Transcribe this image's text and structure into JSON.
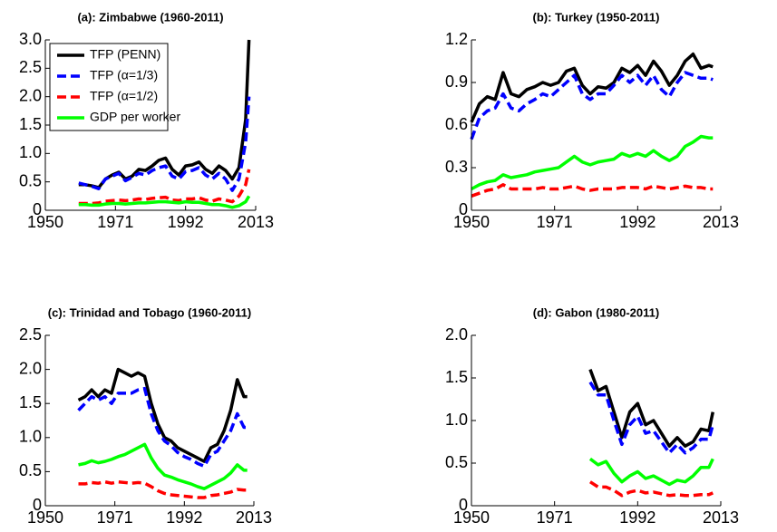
{
  "chart_data": [
    {
      "type": "line",
      "title": "(a): Zimbabwe (1960-2011)",
      "legend": "upper left",
      "x": [
        1960,
        1962,
        1964,
        1966,
        1968,
        1970,
        1972,
        1974,
        1976,
        1978,
        1980,
        1982,
        1984,
        1986,
        1988,
        1990,
        1992,
        1994,
        1996,
        1998,
        2000,
        2002,
        2004,
        2006,
        2008,
        2010,
        2011
      ],
      "series": [
        {
          "name": "TFP (PENN)",
          "color": "#000000",
          "linestyle": "solid",
          "values": [
            0.45,
            0.45,
            0.43,
            0.4,
            0.55,
            0.62,
            0.67,
            0.55,
            0.6,
            0.72,
            0.7,
            0.78,
            0.88,
            0.92,
            0.72,
            0.62,
            0.78,
            0.8,
            0.85,
            0.72,
            0.65,
            0.78,
            0.7,
            0.55,
            0.75,
            1.6,
            3.0
          ]
        },
        {
          "name": "TFP (α=1/3)",
          "color": "#0000ff",
          "linestyle": "dashed",
          "values": [
            0.48,
            0.45,
            0.42,
            0.38,
            0.55,
            0.6,
            0.65,
            0.52,
            0.58,
            0.65,
            0.62,
            0.7,
            0.75,
            0.78,
            0.6,
            0.55,
            0.68,
            0.7,
            0.75,
            0.62,
            0.55,
            0.65,
            0.55,
            0.35,
            0.55,
            1.2,
            2.0
          ]
        },
        {
          "name": "TFP (α=1/2)",
          "color": "#ff0000",
          "linestyle": "dashed",
          "values": [
            0.12,
            0.12,
            0.12,
            0.13,
            0.16,
            0.17,
            0.18,
            0.17,
            0.18,
            0.2,
            0.19,
            0.21,
            0.22,
            0.23,
            0.18,
            0.17,
            0.2,
            0.2,
            0.22,
            0.18,
            0.16,
            0.2,
            0.18,
            0.15,
            0.25,
            0.45,
            0.72
          ]
        },
        {
          "name": "GDP per worker",
          "color": "#00ff00",
          "linestyle": "solid",
          "values": [
            0.1,
            0.1,
            0.09,
            0.09,
            0.11,
            0.12,
            0.12,
            0.11,
            0.12,
            0.13,
            0.13,
            0.14,
            0.15,
            0.15,
            0.14,
            0.13,
            0.15,
            0.14,
            0.14,
            0.12,
            0.1,
            0.1,
            0.08,
            0.05,
            0.08,
            0.15,
            0.25
          ]
        }
      ],
      "xlim": [
        1950,
        2013
      ],
      "xticks": [
        1950,
        1971,
        1992,
        2013
      ],
      "ylim": [
        0,
        3
      ],
      "yticks": [
        0,
        0.5,
        {
          "value": 1,
          "label": "1.0"
        },
        1.5,
        {
          "value": 2,
          "label": "2.0"
        },
        2.5,
        {
          "value": 3,
          "label": "3.0"
        }
      ]
    },
    {
      "type": "line",
      "title": "(b): Turkey (1950-2011)",
      "x": [
        1950,
        1952,
        1954,
        1956,
        1958,
        1960,
        1962,
        1964,
        1966,
        1968,
        1970,
        1972,
        1974,
        1976,
        1978,
        1980,
        1982,
        1984,
        1986,
        1988,
        1990,
        1992,
        1994,
        1996,
        1998,
        2000,
        2002,
        2004,
        2006,
        2008,
        2010,
        2011
      ],
      "series": [
        {
          "name": "TFP (PENN)",
          "color": "#000000",
          "linestyle": "solid",
          "values": [
            0.62,
            0.75,
            0.8,
            0.78,
            0.97,
            0.82,
            0.8,
            0.85,
            0.87,
            0.9,
            0.88,
            0.9,
            0.98,
            1.0,
            0.88,
            0.82,
            0.87,
            0.86,
            0.9,
            1.0,
            0.97,
            1.02,
            0.95,
            1.05,
            0.98,
            0.88,
            0.95,
            1.05,
            1.1,
            1.0,
            1.02,
            1.01
          ]
        },
        {
          "name": "TFP (α=1/3)",
          "color": "#0000ff",
          "linestyle": "dashed",
          "values": [
            0.5,
            0.65,
            0.7,
            0.72,
            0.82,
            0.72,
            0.7,
            0.75,
            0.78,
            0.82,
            0.8,
            0.85,
            0.9,
            0.95,
            0.82,
            0.78,
            0.82,
            0.82,
            0.88,
            0.95,
            0.9,
            0.95,
            0.88,
            0.95,
            0.85,
            0.8,
            0.9,
            0.97,
            0.95,
            0.93,
            0.93,
            0.92
          ]
        },
        {
          "name": "TFP (α=1/2)",
          "color": "#ff0000",
          "linestyle": "dashed",
          "values": [
            0.1,
            0.12,
            0.14,
            0.15,
            0.18,
            0.15,
            0.15,
            0.15,
            0.15,
            0.16,
            0.15,
            0.15,
            0.16,
            0.17,
            0.15,
            0.14,
            0.15,
            0.15,
            0.15,
            0.16,
            0.16,
            0.16,
            0.15,
            0.17,
            0.16,
            0.15,
            0.16,
            0.17,
            0.16,
            0.16,
            0.15,
            0.15
          ]
        },
        {
          "name": "GDP per worker",
          "color": "#00ff00",
          "linestyle": "solid",
          "values": [
            0.15,
            0.18,
            0.2,
            0.21,
            0.25,
            0.23,
            0.24,
            0.25,
            0.27,
            0.28,
            0.29,
            0.3,
            0.34,
            0.38,
            0.34,
            0.32,
            0.34,
            0.35,
            0.36,
            0.4,
            0.38,
            0.4,
            0.38,
            0.42,
            0.38,
            0.35,
            0.38,
            0.45,
            0.48,
            0.52,
            0.51,
            0.51
          ]
        }
      ],
      "xlim": [
        1950,
        2013
      ],
      "xticks": [
        1950,
        1971,
        1992,
        2013
      ],
      "ylim": [
        0,
        1.2
      ],
      "yticks": [
        0,
        0.3,
        0.6,
        0.9,
        1.2
      ]
    },
    {
      "type": "line",
      "title": "(c): Trinidad and Tobago (1960-2011)",
      "x": [
        1960,
        1962,
        1964,
        1966,
        1968,
        1970,
        1972,
        1974,
        1976,
        1978,
        1980,
        1982,
        1984,
        1986,
        1988,
        1990,
        1992,
        1994,
        1996,
        1998,
        2000,
        2002,
        2004,
        2006,
        2008,
        2010,
        2011
      ],
      "series": [
        {
          "name": "TFP (PENN)",
          "color": "#000000",
          "linestyle": "solid",
          "values": [
            1.55,
            1.6,
            1.7,
            1.6,
            1.7,
            1.65,
            2.0,
            1.95,
            1.9,
            1.95,
            1.9,
            1.5,
            1.2,
            1.0,
            0.95,
            0.85,
            0.8,
            0.75,
            0.7,
            0.65,
            0.85,
            0.9,
            1.1,
            1.4,
            1.85,
            1.6,
            1.6
          ]
        },
        {
          "name": "TFP (α=1/3)",
          "color": "#0000ff",
          "linestyle": "dashed",
          "values": [
            1.4,
            1.5,
            1.6,
            1.55,
            1.6,
            1.5,
            1.65,
            1.65,
            1.65,
            1.7,
            1.72,
            1.35,
            1.1,
            0.95,
            0.88,
            0.78,
            0.72,
            0.68,
            0.62,
            0.58,
            0.75,
            0.8,
            0.95,
            1.1,
            1.35,
            1.15,
            1.15
          ]
        },
        {
          "name": "TFP (α=1/2)",
          "color": "#ff0000",
          "linestyle": "dashed",
          "values": [
            0.32,
            0.32,
            0.34,
            0.33,
            0.35,
            0.33,
            0.35,
            0.34,
            0.33,
            0.34,
            0.33,
            0.28,
            0.22,
            0.18,
            0.16,
            0.15,
            0.14,
            0.13,
            0.12,
            0.12,
            0.15,
            0.16,
            0.18,
            0.2,
            0.24,
            0.23,
            0.23
          ]
        },
        {
          "name": "GDP per worker",
          "color": "#00ff00",
          "linestyle": "solid",
          "values": [
            0.6,
            0.62,
            0.66,
            0.63,
            0.65,
            0.68,
            0.72,
            0.75,
            0.8,
            0.85,
            0.9,
            0.7,
            0.55,
            0.45,
            0.42,
            0.38,
            0.35,
            0.32,
            0.28,
            0.25,
            0.3,
            0.35,
            0.4,
            0.48,
            0.6,
            0.52,
            0.52
          ]
        }
      ],
      "xlim": [
        1950,
        2013
      ],
      "xticks": [
        1950,
        1971,
        1992,
        2013
      ],
      "ylim": [
        0,
        2.5
      ],
      "yticks": [
        0,
        0.5,
        {
          "value": 1,
          "label": "1.0"
        },
        1.5,
        {
          "value": 2,
          "label": "2.0"
        },
        2.5
      ]
    },
    {
      "type": "line",
      "title": "(d): Gabon (1980-2011)",
      "x": [
        1980,
        1982,
        1984,
        1986,
        1988,
        1990,
        1992,
        1994,
        1996,
        1998,
        2000,
        2002,
        2004,
        2006,
        2008,
        2010,
        2011
      ],
      "series": [
        {
          "name": "TFP (PENN)",
          "color": "#000000",
          "linestyle": "solid",
          "values": [
            1.6,
            1.35,
            1.4,
            1.1,
            0.8,
            1.1,
            1.2,
            0.95,
            1.0,
            0.85,
            0.7,
            0.8,
            0.7,
            0.75,
            0.9,
            0.88,
            1.1
          ]
        },
        {
          "name": "TFP (α=1/3)",
          "color": "#0000ff",
          "linestyle": "dashed",
          "values": [
            1.45,
            1.3,
            1.3,
            1.0,
            0.72,
            0.95,
            1.05,
            0.85,
            0.88,
            0.75,
            0.62,
            0.72,
            0.62,
            0.68,
            0.78,
            0.78,
            0.95
          ]
        },
        {
          "name": "TFP (α=1/2)",
          "color": "#ff0000",
          "linestyle": "dashed",
          "values": [
            0.28,
            0.22,
            0.22,
            0.18,
            0.12,
            0.16,
            0.18,
            0.15,
            0.16,
            0.14,
            0.12,
            0.13,
            0.12,
            0.12,
            0.13,
            0.13,
            0.15
          ]
        },
        {
          "name": "GDP per worker",
          "color": "#00ff00",
          "linestyle": "solid",
          "values": [
            0.55,
            0.48,
            0.52,
            0.38,
            0.28,
            0.35,
            0.4,
            0.32,
            0.35,
            0.3,
            0.25,
            0.3,
            0.28,
            0.35,
            0.45,
            0.45,
            0.55
          ]
        }
      ],
      "xlim": [
        1950,
        2013
      ],
      "xticks": [
        1950,
        1971,
        1992,
        2013
      ],
      "ylim": [
        0,
        2
      ],
      "yticks": [
        0,
        0.5,
        {
          "value": 1,
          "label": "1.0"
        },
        1.5,
        {
          "value": 2,
          "label": "2.0"
        }
      ]
    }
  ]
}
